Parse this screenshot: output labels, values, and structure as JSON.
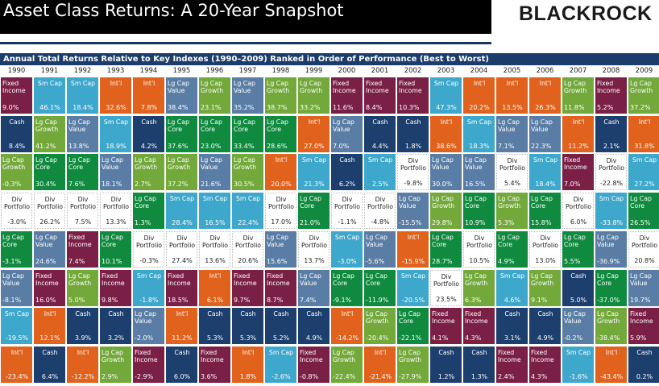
{
  "title": "Asset Class Returns: A 20-Year Snapshot",
  "logo": "BLACKROCK",
  "subtitle": "Annual Total Returns Relative to Key Indexes (1990–2009) Ranked in Order of Performance (Best to Worst)",
  "colors": {
    "Fixed\nIncome": "#7a1f45",
    "Sm Cap": "#3ea8cc",
    "Int'l": "#e0621d",
    "Lg Cap\nValue": "#5a7da5",
    "Lg Cap\nGrowth": "#73a83a",
    "Lg Cap\nCore": "#0f8a3e",
    "Cash": "#1d3f6e",
    "Div\nPortfolio": "#ffffff"
  },
  "chart_data": {
    "type": "table",
    "title": "Asset Class Returns: A 20-Year Snapshot",
    "subtitle": "Annual Total Returns Relative to Key Indexes (1990–2009) Ranked in Order of Performance (Best to Worst)",
    "years": [
      "1990",
      "1991",
      "1992",
      "1993",
      "1994",
      "1995",
      "1996",
      "1997",
      "1998",
      "1999",
      "2000",
      "2001",
      "2002",
      "2003",
      "2004",
      "2005",
      "2006",
      "2007",
      "2008",
      "2009"
    ],
    "columns": [
      [
        [
          "Fixed\nIncome",
          "9.0%"
        ],
        [
          "Cash",
          "8.4%"
        ],
        [
          "Lg Cap\nGrowth",
          "-0.3%"
        ],
        [
          "Div\nPortfolio",
          "-3.0%"
        ],
        [
          "Lg Cap\nCore",
          "-3.1%"
        ],
        [
          "Lg Cap\nValue",
          "-8.1%"
        ],
        [
          "Sm Cap",
          "-19.5%"
        ],
        [
          "Int'l",
          "-23.4%"
        ]
      ],
      [
        [
          "Sm Cap",
          "46.1%"
        ],
        [
          "Lg Cap\nGrowth",
          "41.2%"
        ],
        [
          "Lg Cap\nCore",
          "30.4%"
        ],
        [
          "Div\nPortfolio",
          "26.2%"
        ],
        [
          "Lg Cap\nValue",
          "24.6%"
        ],
        [
          "Fixed\nIncome",
          "16.0%"
        ],
        [
          "Int'l",
          "12.1%"
        ],
        [
          "Cash",
          "6.4%"
        ]
      ],
      [
        [
          "Sm Cap",
          "18.4%"
        ],
        [
          "Lg Cap\nValue",
          "13.8%"
        ],
        [
          "Lg Cap\nCore",
          "7.6%"
        ],
        [
          "Div\nPortfolio",
          "7.5%"
        ],
        [
          "Fixed\nIncome",
          "7.4%"
        ],
        [
          "Lg Cap\nGrowth",
          "5.0%"
        ],
        [
          "Cash",
          "3.9%"
        ],
        [
          "Int'l",
          "-12.2%"
        ]
      ],
      [
        [
          "Int'l",
          "32.6%"
        ],
        [
          "Sm Cap",
          "18.9%"
        ],
        [
          "Lg Cap\nValue",
          "18.1%"
        ],
        [
          "Div\nPortfolio",
          "13.3%"
        ],
        [
          "Lg Cap\nCore",
          "10.1%"
        ],
        [
          "Fixed\nIncome",
          "9.8%"
        ],
        [
          "Cash",
          "3.2%"
        ],
        [
          "Lg Cap\nGrowth",
          "2.9%"
        ]
      ],
      [
        [
          "Int'l",
          "7.8%"
        ],
        [
          "Cash",
          "4.2%"
        ],
        [
          "Lg Cap\nGrowth",
          "2.7%"
        ],
        [
          "Lg Cap\nCore",
          "1.3%"
        ],
        [
          "Div\nPortfolio",
          "-0.3%"
        ],
        [
          "Sm Cap",
          "-1.8%"
        ],
        [
          "Lg Cap\nValue",
          "-2.0%"
        ],
        [
          "Fixed\nIncome",
          "-2.9%"
        ]
      ],
      [
        [
          "Lg Cap\nValue",
          "38.4%"
        ],
        [
          "Lg Cap\nCore",
          "37.6%"
        ],
        [
          "Lg Cap\nGrowth",
          "37.2%"
        ],
        [
          "Sm Cap",
          "28.4%"
        ],
        [
          "Div\nPortfolio",
          "27.4%"
        ],
        [
          "Fixed\nIncome",
          "18.5%"
        ],
        [
          "Int'l",
          "11.2%"
        ],
        [
          "Cash",
          "6.0%"
        ]
      ],
      [
        [
          "Lg Cap\nGrowth",
          "23.1%"
        ],
        [
          "Lg Cap\nCore",
          "23.0%"
        ],
        [
          "Lg Cap\nValue",
          "21.6%"
        ],
        [
          "Sm Cap",
          "16.5%"
        ],
        [
          "Div\nPortfolio",
          "13.6%"
        ],
        [
          "Int'l",
          "6.1%"
        ],
        [
          "Cash",
          "5.3%"
        ],
        [
          "Fixed\nIncome",
          "3.6%"
        ]
      ],
      [
        [
          "Lg Cap\nValue",
          "35.2%"
        ],
        [
          "Lg Cap\nCore",
          "33.4%"
        ],
        [
          "Lg Cap\nGrowth",
          "30.5%"
        ],
        [
          "Sm Cap",
          "22.4%"
        ],
        [
          "Div\nPortfolio",
          "20.6%"
        ],
        [
          "Fixed\nIncome",
          "9.7%"
        ],
        [
          "Cash",
          "5.3%"
        ],
        [
          "Int'l",
          "1.8%"
        ]
      ],
      [
        [
          "Lg Cap\nGrowth",
          "38.7%"
        ],
        [
          "Lg Cap\nCore",
          "28.6%"
        ],
        [
          "Int'l",
          "20.0%"
        ],
        [
          "Div\nPortfolio",
          "17.0%"
        ],
        [
          "Lg Cap\nValue",
          "15.6%"
        ],
        [
          "Fixed\nIncome",
          "8.7%"
        ],
        [
          "Cash",
          "5.2%"
        ],
        [
          "Sm Cap",
          "-2.6%"
        ]
      ],
      [
        [
          "Lg Cap\nGrowth",
          "33.2%"
        ],
        [
          "Int'l",
          "27.0%"
        ],
        [
          "Sm Cap",
          "21.3%"
        ],
        [
          "Lg Cap\nCore",
          "21.0%"
        ],
        [
          "Div\nPortfolio",
          "13.7%"
        ],
        [
          "Lg Cap\nValue",
          "7.4%"
        ],
        [
          "Cash",
          "4.9%"
        ],
        [
          "Fixed\nIncome",
          "-0.8%"
        ]
      ],
      [
        [
          "Fixed\nIncome",
          "11.6%"
        ],
        [
          "Lg Cap\nValue",
          "7.0%"
        ],
        [
          "Cash",
          "6.2%"
        ],
        [
          "Div\nPortfolio",
          "-1.1%"
        ],
        [
          "Sm Cap",
          "-3.0%"
        ],
        [
          "Lg Cap\nCore",
          "-9.1%"
        ],
        [
          "Int'l",
          "-14.2%"
        ],
        [
          "Lg Cap\nGrowth",
          "-22.4%"
        ]
      ],
      [
        [
          "Fixed\nIncome",
          "8.4%"
        ],
        [
          "Cash",
          "4.4%"
        ],
        [
          "Sm Cap",
          "2.5%"
        ],
        [
          "Div\nPortfolio",
          "-4.8%"
        ],
        [
          "Lg Cap\nValue",
          "-5.6%"
        ],
        [
          "Lg Cap\nCore",
          "-11.9%"
        ],
        [
          "Lg Cap\nGrowth",
          "-20.4%"
        ],
        [
          "Int'l",
          "-21.4%"
        ]
      ],
      [
        [
          "Fixed\nIncome",
          "10.3%"
        ],
        [
          "Cash",
          "1.8%"
        ],
        [
          "Div\nPortfolio",
          "-9.8%"
        ],
        [
          "Lg Cap\nValue",
          "-15.5%"
        ],
        [
          "Int'l",
          "-15.9%"
        ],
        [
          "Sm Cap",
          "-20.5%"
        ],
        [
          "Lg Cap\nCore",
          "-22.1%"
        ],
        [
          "Lg Cap\nGrowth",
          "-27.9%"
        ]
      ],
      [
        [
          "Sm Cap",
          "47.3%"
        ],
        [
          "Int'l",
          "38.6%"
        ],
        [
          "Lg Cap\nValue",
          "30.0%"
        ],
        [
          "Lg Cap\nGrowth",
          "29.8%"
        ],
        [
          "Lg Cap\nCore",
          "28.7%"
        ],
        [
          "Div\nPortfolio",
          "23.5%"
        ],
        [
          "Fixed\nIncome",
          "4.1%"
        ],
        [
          "Cash",
          "1.2%"
        ]
      ],
      [
        [
          "Int'l",
          "20.2%"
        ],
        [
          "Sm Cap",
          "18.3%"
        ],
        [
          "Lg Cap\nValue",
          "16.5%"
        ],
        [
          "Lg Cap\nCore",
          "10.9%"
        ],
        [
          "Div\nPortfolio",
          "10.5%"
        ],
        [
          "Lg Cap\nGrowth",
          "6.3%"
        ],
        [
          "Fixed\nIncome",
          "4.3%"
        ],
        [
          "Cash",
          "1.3%"
        ]
      ],
      [
        [
          "Int'l",
          "13.5%"
        ],
        [
          "Lg Cap\nValue",
          "7.1%"
        ],
        [
          "Div\nPortfolio",
          "5.4%"
        ],
        [
          "Lg Cap\nGrowth",
          "5.3%"
        ],
        [
          "Lg Cap\nCore",
          "4.9%"
        ],
        [
          "Sm Cap",
          "4.6%"
        ],
        [
          "Cash",
          "3.1%"
        ],
        [
          "Fixed\nIncome",
          "2.4%"
        ]
      ],
      [
        [
          "Int'l",
          "26.3%"
        ],
        [
          "Lg Cap\nValue",
          "22.3%"
        ],
        [
          "Sm Cap",
          "18.4%"
        ],
        [
          "Lg Cap\nCore",
          "15.8%"
        ],
        [
          "Div\nPortfolio",
          "13.0%"
        ],
        [
          "Lg Cap\nGrowth",
          "9.1%"
        ],
        [
          "Cash",
          "4.9%"
        ],
        [
          "Fixed\nIncome",
          "4.3%"
        ]
      ],
      [
        [
          "Lg Cap\nGrowth",
          "11.8%"
        ],
        [
          "Int'l",
          "11.2%"
        ],
        [
          "Fixed\nIncome",
          "7.0%"
        ],
        [
          "Div\nPortfolio",
          "6.0%"
        ],
        [
          "Lg Cap\nCore",
          "5.5%"
        ],
        [
          "Cash",
          "5.0%"
        ],
        [
          "Lg Cap\nValue",
          "-0.2%"
        ],
        [
          "Sm Cap",
          "-1.6%"
        ]
      ],
      [
        [
          "Fixed\nIncome",
          "5.2%"
        ],
        [
          "Cash",
          "2.1%"
        ],
        [
          "Div\nPortfolio",
          "-22.8%"
        ],
        [
          "Sm Cap",
          "-33.8%"
        ],
        [
          "Lg Cap\nValue",
          "-36.9%"
        ],
        [
          "Lg Cap\nCore",
          "-37.0%"
        ],
        [
          "Lg Cap\nGrowth",
          "-38.4%"
        ],
        [
          "Int'l",
          "-43.4%"
        ]
      ],
      [
        [
          "Lg Cap\nGrowth",
          "37.2%"
        ],
        [
          "Int'l",
          "31.8%"
        ],
        [
          "Sm Cap",
          "27.2%"
        ],
        [
          "Lg Cap\nCore",
          "26.5%"
        ],
        [
          "Div\nPortfolio",
          "20.8%"
        ],
        [
          "Lg Cap\nValue",
          "19.7%"
        ],
        [
          "Fixed\nIncome",
          "5.9%"
        ],
        [
          "Cash",
          "0.2%"
        ]
      ]
    ]
  }
}
